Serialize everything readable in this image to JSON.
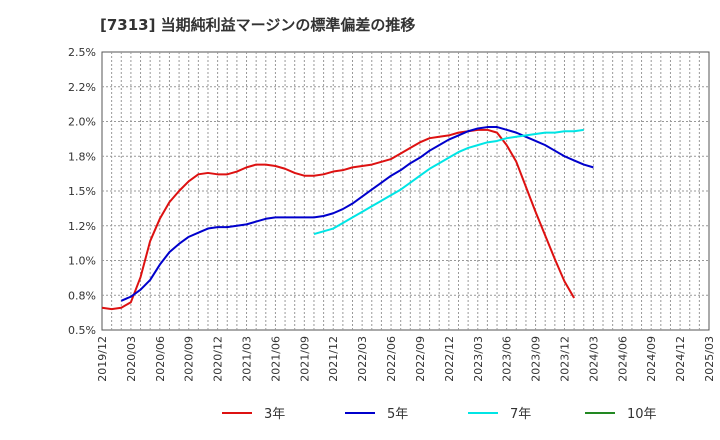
{
  "chart_data": {
    "type": "line",
    "title": "[7313]  当期純利益マージンの標準偏差の推移",
    "xlabel": "",
    "ylabel": "",
    "x_ticks": [
      "2019/12",
      "2020/03",
      "2020/06",
      "2020/09",
      "2020/12",
      "2021/03",
      "2021/06",
      "2021/09",
      "2021/12",
      "2022/03",
      "2022/06",
      "2022/09",
      "2022/12",
      "2023/03",
      "2023/06",
      "2023/09",
      "2023/12",
      "2024/03",
      "2024/06",
      "2024/09",
      "2024/12",
      "2025/03"
    ],
    "y_ticks": [
      "0.5%",
      "0.8%",
      "1.0%",
      "1.2%",
      "1.5%",
      "1.8%",
      "2.0%",
      "2.2%",
      "2.5%"
    ],
    "ylim": [
      0.5,
      2.5
    ],
    "grid": true,
    "legend_position": "bottom",
    "series": [
      {
        "name": "3年",
        "color": "#dd1111",
        "start_index": 0,
        "values": [
          0.66,
          0.65,
          0.66,
          0.7,
          0.88,
          1.14,
          1.3,
          1.42,
          1.5,
          1.57,
          1.62,
          1.63,
          1.62,
          1.62,
          1.64,
          1.67,
          1.69,
          1.69,
          1.68,
          1.66,
          1.63,
          1.61,
          1.61,
          1.62,
          1.64,
          1.65,
          1.67,
          1.68,
          1.69,
          1.71,
          1.73,
          1.77,
          1.81,
          1.85,
          1.88,
          1.89,
          1.9,
          1.92,
          1.93,
          1.94,
          1.94,
          1.92,
          1.83,
          1.71,
          1.53,
          1.35,
          1.18,
          1.01,
          0.85,
          0.73
        ]
      },
      {
        "name": "5年",
        "color": "#0000cc",
        "start_index": 2,
        "values": [
          0.71,
          0.74,
          0.79,
          0.86,
          0.97,
          1.06,
          1.12,
          1.17,
          1.2,
          1.23,
          1.24,
          1.24,
          1.25,
          1.26,
          1.28,
          1.3,
          1.31,
          1.31,
          1.31,
          1.31,
          1.31,
          1.32,
          1.34,
          1.37,
          1.41,
          1.46,
          1.51,
          1.56,
          1.61,
          1.65,
          1.7,
          1.74,
          1.79,
          1.83,
          1.87,
          1.9,
          1.93,
          1.95,
          1.96,
          1.96,
          1.94,
          1.92,
          1.89,
          1.86,
          1.83,
          1.79,
          1.75,
          1.72,
          1.69,
          1.67
        ]
      },
      {
        "name": "7年",
        "color": "#00e5e5",
        "start_index": 22,
        "values": [
          1.19,
          1.21,
          1.23,
          1.27,
          1.31,
          1.35,
          1.39,
          1.43,
          1.47,
          1.51,
          1.56,
          1.61,
          1.66,
          1.7,
          1.74,
          1.78,
          1.81,
          1.83,
          1.85,
          1.86,
          1.88,
          1.89,
          1.9,
          1.91,
          1.92,
          1.92,
          1.93,
          1.93,
          1.94
        ]
      },
      {
        "name": "10年",
        "color": "#228822",
        "start_index": 0,
        "values": []
      }
    ]
  }
}
